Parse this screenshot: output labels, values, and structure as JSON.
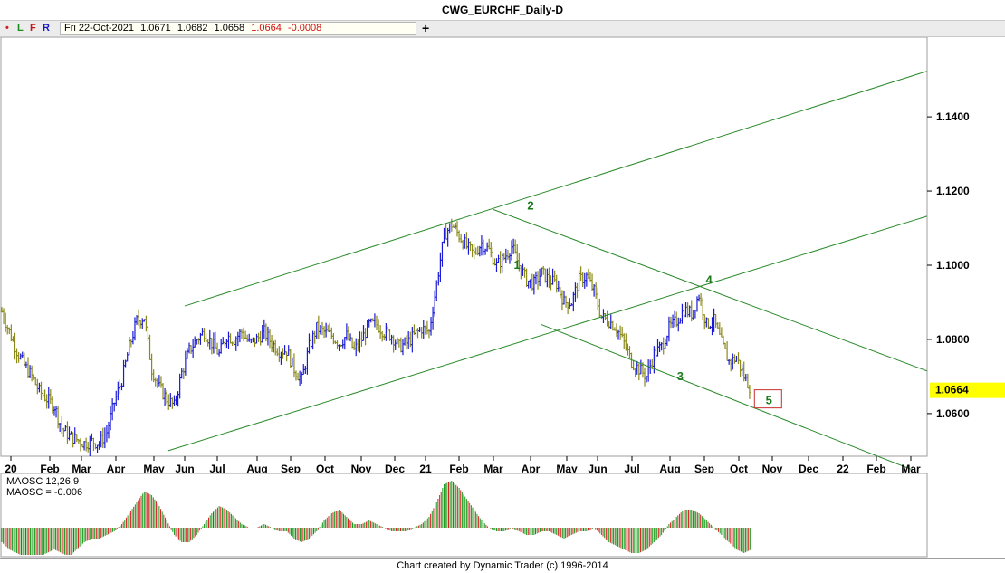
{
  "window": {
    "title": "CWG_EURCHF_Daily-D"
  },
  "toolbar": {
    "dot": "•",
    "l_label": "L",
    "f_label": "F",
    "r_label": "R",
    "add_label": "+"
  },
  "info": {
    "date": "Fri 22-Oct-2021",
    "open": "1.0671",
    "high": "1.0682",
    "low": "1.0658",
    "close": "1.0664",
    "change": "-0.0008"
  },
  "oscillator": {
    "name_label": "MAOSC 12,26,9",
    "value_label": "MAOSC = -0.006",
    "up_color": "#1d9a1d",
    "down_color": "#d42020"
  },
  "credit": "Chart created by Dynamic Trader  (c) 1996-2014",
  "chart_data": {
    "type": "bar",
    "title": "CWG_EURCHF_Daily-D",
    "x_tick_labels": [
      "20",
      "Feb",
      "Mar",
      "Apr",
      "May",
      "Jun",
      "Jul",
      "Aug",
      "Sep",
      "Oct",
      "Nov",
      "Dec",
      "21",
      "Feb",
      "Mar",
      "Apr",
      "May",
      "Jun",
      "Jul",
      "Aug",
      "Sep",
      "Oct",
      "Nov",
      "Dec",
      "22",
      "Feb",
      "Mar"
    ],
    "y_tick_labels": [
      "1.1400",
      "1.1200",
      "1.1000",
      "1.0800",
      "1.0600"
    ],
    "y_ticks": [
      1.14,
      1.12,
      1.1,
      1.08,
      1.06
    ],
    "ylim": [
      1.0485,
      1.1615
    ],
    "last_price_label": "1.0664",
    "last_price": 1.0664,
    "last_price_color": "#ffff00",
    "bar_up_color": "#1a1ad6",
    "bar_down_color": "#8a8a1a",
    "series": [
      {
        "name": "",
        "values": [
          1.0875,
          1.082,
          1.077,
          1.073,
          1.07,
          1.066,
          1.064,
          1.062,
          1.056,
          1.054,
          1.053,
          1.052,
          1.0525,
          1.052,
          1.055,
          1.063,
          1.069,
          1.078,
          1.085,
          1.086,
          1.072,
          1.067,
          1.064,
          1.062,
          1.071,
          1.077,
          1.08,
          1.082,
          1.079,
          1.076,
          1.081,
          1.08,
          1.082,
          1.079,
          1.08,
          1.082,
          1.079,
          1.077,
          1.077,
          1.072,
          1.069,
          1.078,
          1.083,
          1.082,
          1.081,
          1.079,
          1.081,
          1.077,
          1.08,
          1.084,
          1.084,
          1.082,
          1.081,
          1.078,
          1.079,
          1.081,
          1.083,
          1.082,
          1.095,
          1.108,
          1.111,
          1.108,
          1.105,
          1.103,
          1.106,
          1.104,
          1.1,
          1.102,
          1.105,
          1.1,
          1.096,
          1.095,
          1.098,
          1.096,
          1.095,
          1.09,
          1.09,
          1.096,
          1.097,
          1.093,
          1.086,
          1.085,
          1.083,
          1.079,
          1.074,
          1.072,
          1.07,
          1.076,
          1.078,
          1.083,
          1.085,
          1.088,
          1.087,
          1.092,
          1.084,
          1.085,
          1.079,
          1.074,
          1.075,
          1.07,
          1.0664
        ]
      }
    ],
    "channel_lines": [
      {
        "from": [
          "2020-06-01",
          1.089
        ],
        "to": [
          "2022-03-15",
          1.1523
        ]
      },
      {
        "from": [
          "2020-05-15",
          1.05
        ],
        "to": [
          "2022-03-15",
          1.1132
        ]
      },
      {
        "from": [
          "2021-03-01",
          1.115
        ],
        "to": [
          "2022-03-15",
          1.0715
        ]
      },
      {
        "from": [
          "2021-04-10",
          1.084
        ],
        "to": [
          "2022-03-01",
          1.045
        ]
      }
    ],
    "wave_labels": [
      {
        "label": "1",
        "x": "2021-03-20",
        "y": 1.099
      },
      {
        "label": "2",
        "x": "2021-04-01",
        "y": 1.115
      },
      {
        "label": "3",
        "x": "2021-08-10",
        "y": 1.069
      },
      {
        "label": "4",
        "x": "2021-09-05",
        "y": 1.095
      },
      {
        "label": "5",
        "x": "2021-10-28",
        "y": 1.0625
      }
    ],
    "oscillator_ylim": [
      -0.012,
      0.013
    ],
    "oscillator_values": [
      -0.004,
      -0.006,
      -0.007,
      -0.008,
      -0.008,
      -0.008,
      -0.007,
      -0.006,
      -0.007,
      -0.008,
      -0.006,
      -0.004,
      -0.003,
      -0.003,
      -0.002,
      -0.001,
      0.001,
      0.004,
      0.007,
      0.01,
      0.009,
      0.006,
      0.002,
      -0.002,
      -0.004,
      -0.004,
      -0.002,
      0.001,
      0.004,
      0.006,
      0.005,
      0.003,
      0.001,
      0.0,
      0.0,
      0.001,
      0.0,
      -0.001,
      -0.001,
      -0.003,
      -0.004,
      -0.003,
      -0.001,
      0.002,
      0.004,
      0.005,
      0.003,
      0.001,
      0.001,
      0.002,
      0.001,
      0.0,
      -0.001,
      -0.001,
      -0.001,
      0.0,
      0.001,
      0.003,
      0.007,
      0.012,
      0.013,
      0.011,
      0.008,
      0.005,
      0.002,
      0.0,
      -0.001,
      -0.001,
      0.0,
      -0.001,
      -0.002,
      -0.002,
      -0.001,
      -0.001,
      -0.002,
      -0.003,
      -0.002,
      -0.001,
      -0.001,
      0.0,
      -0.002,
      -0.004,
      -0.005,
      -0.006,
      -0.007,
      -0.007,
      -0.006,
      -0.004,
      -0.002,
      0.001,
      0.003,
      0.005,
      0.005,
      0.004,
      0.002,
      0.0,
      -0.002,
      -0.004,
      -0.006,
      -0.007,
      -0.006
    ]
  }
}
